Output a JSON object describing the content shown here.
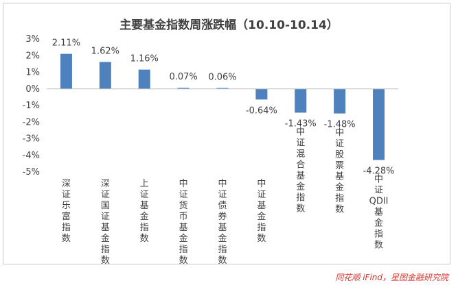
{
  "chart_data": {
    "type": "bar",
    "title": "主要基金指数周涨跌幅（10.10-10.14）",
    "categories": [
      "深证乐富指数",
      "深证国证基金指数",
      "上证基金指数",
      "中证货币基金指数",
      "中证债券基金指数",
      "中证基金指数",
      "中证混合基金指数",
      "中证股票基金指数",
      "中证QDII基金指数"
    ],
    "values": [
      2.11,
      1.62,
      1.16,
      0.07,
      0.06,
      -0.64,
      -1.43,
      -1.48,
      -4.28
    ],
    "data_labels": [
      "2.11%",
      "1.62%",
      "1.16%",
      "0.07%",
      "0.06%",
      "-0.64%",
      "-1.43%",
      "-1.48%",
      "-4.28%"
    ],
    "y_ticks": [
      "3%",
      "2%",
      "1%",
      "0%",
      "-1%",
      "-2%",
      "-3%",
      "-4%",
      "-5%"
    ],
    "ylim": [
      -5,
      3
    ],
    "grid": false,
    "bar_color": "#4f81bd"
  },
  "source_note": "同花顺 iFind，星图金融研究院"
}
